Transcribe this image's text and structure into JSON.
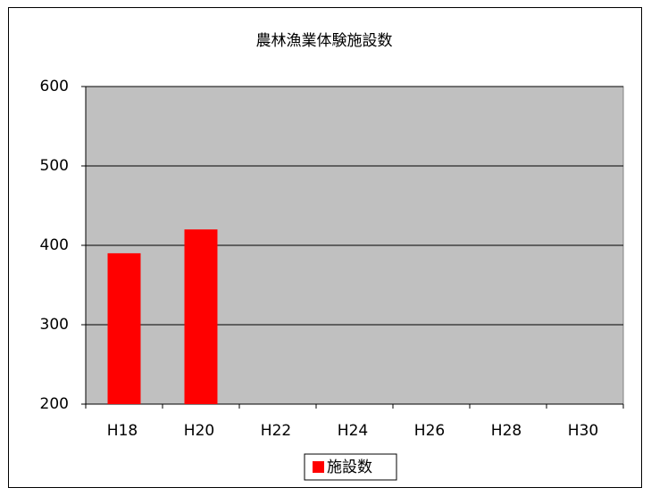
{
  "chart_data": {
    "type": "bar",
    "title": "農林漁業体験施設数",
    "categories": [
      "H18",
      "H20",
      "H22",
      "H24",
      "H26",
      "H28",
      "H30"
    ],
    "series": [
      {
        "name": "施設数",
        "color": "#ff0000",
        "values": [
          390,
          420,
          null,
          null,
          null,
          null,
          null
        ]
      }
    ],
    "ylim": [
      200,
      600
    ],
    "yticks": [
      200,
      300,
      400,
      500,
      600
    ],
    "grid": true,
    "legend": "bottom"
  }
}
